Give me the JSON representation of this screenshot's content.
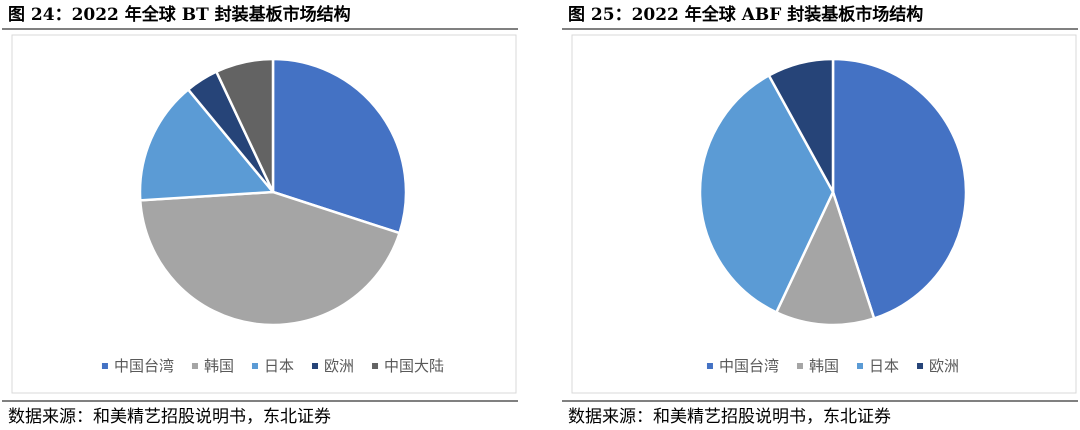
{
  "chart_data": [
    {
      "type": "pie",
      "title": "图 24：2022 年全球 BT 封装基板市场结构",
      "categories": [
        "中国台湾",
        "韩国",
        "日本",
        "欧洲",
        "中国大陆"
      ],
      "values": [
        30,
        44,
        15,
        4,
        7
      ],
      "colors": [
        "#4472c4",
        "#a5a5a5",
        "#5b9bd5",
        "#264478",
        "#636363"
      ],
      "source": "数据来源：和美精艺招股说明书，东北证券"
    },
    {
      "type": "pie",
      "title": "图 25：2022 年全球 ABF 封装基板市场结构",
      "categories": [
        "中国台湾",
        "韩国",
        "日本",
        "欧洲"
      ],
      "values": [
        45,
        12,
        35,
        8
      ],
      "colors": [
        "#4472c4",
        "#a5a5a5",
        "#5b9bd5",
        "#264478"
      ],
      "source": "数据来源：和美精艺招股说明书，东北证券"
    }
  ]
}
